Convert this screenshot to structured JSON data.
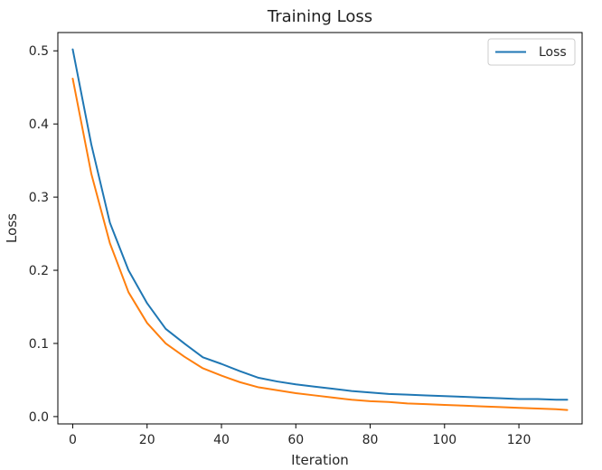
{
  "chart_data": {
    "type": "line",
    "title": "Training Loss",
    "xlabel": "Iteration",
    "ylabel": "Loss",
    "xlim": [
      -4,
      137
    ],
    "ylim": [
      -0.01,
      0.525
    ],
    "xticks": [
      0,
      20,
      40,
      60,
      80,
      100,
      120
    ],
    "yticks": [
      0.0,
      0.1,
      0.2,
      0.3,
      0.4,
      0.5
    ],
    "grid": false,
    "legend_position": "top-right",
    "legend_entries": [
      "Loss"
    ],
    "series": [
      {
        "name": "Loss",
        "color": "#1f77b4",
        "x": [
          0,
          5,
          10,
          15,
          20,
          25,
          30,
          35,
          40,
          45,
          50,
          55,
          60,
          65,
          70,
          75,
          80,
          85,
          90,
          95,
          100,
          105,
          110,
          115,
          120,
          125,
          130,
          133
        ],
        "values": [
          0.502,
          0.372,
          0.265,
          0.2,
          0.155,
          0.12,
          0.1,
          0.081,
          0.072,
          0.062,
          0.053,
          0.048,
          0.044,
          0.041,
          0.038,
          0.035,
          0.033,
          0.031,
          0.03,
          0.029,
          0.028,
          0.027,
          0.026,
          0.025,
          0.024,
          0.024,
          0.023,
          0.023
        ]
      },
      {
        "name": "",
        "color": "#ff7f0e",
        "x": [
          0,
          5,
          10,
          15,
          20,
          25,
          30,
          35,
          40,
          45,
          50,
          55,
          60,
          65,
          70,
          75,
          80,
          85,
          90,
          95,
          100,
          105,
          110,
          115,
          120,
          125,
          130,
          133
        ],
        "values": [
          0.462,
          0.332,
          0.237,
          0.17,
          0.128,
          0.1,
          0.082,
          0.066,
          0.056,
          0.047,
          0.04,
          0.036,
          0.032,
          0.029,
          0.026,
          0.023,
          0.021,
          0.02,
          0.018,
          0.017,
          0.016,
          0.015,
          0.014,
          0.013,
          0.012,
          0.011,
          0.01,
          0.009
        ]
      }
    ]
  }
}
